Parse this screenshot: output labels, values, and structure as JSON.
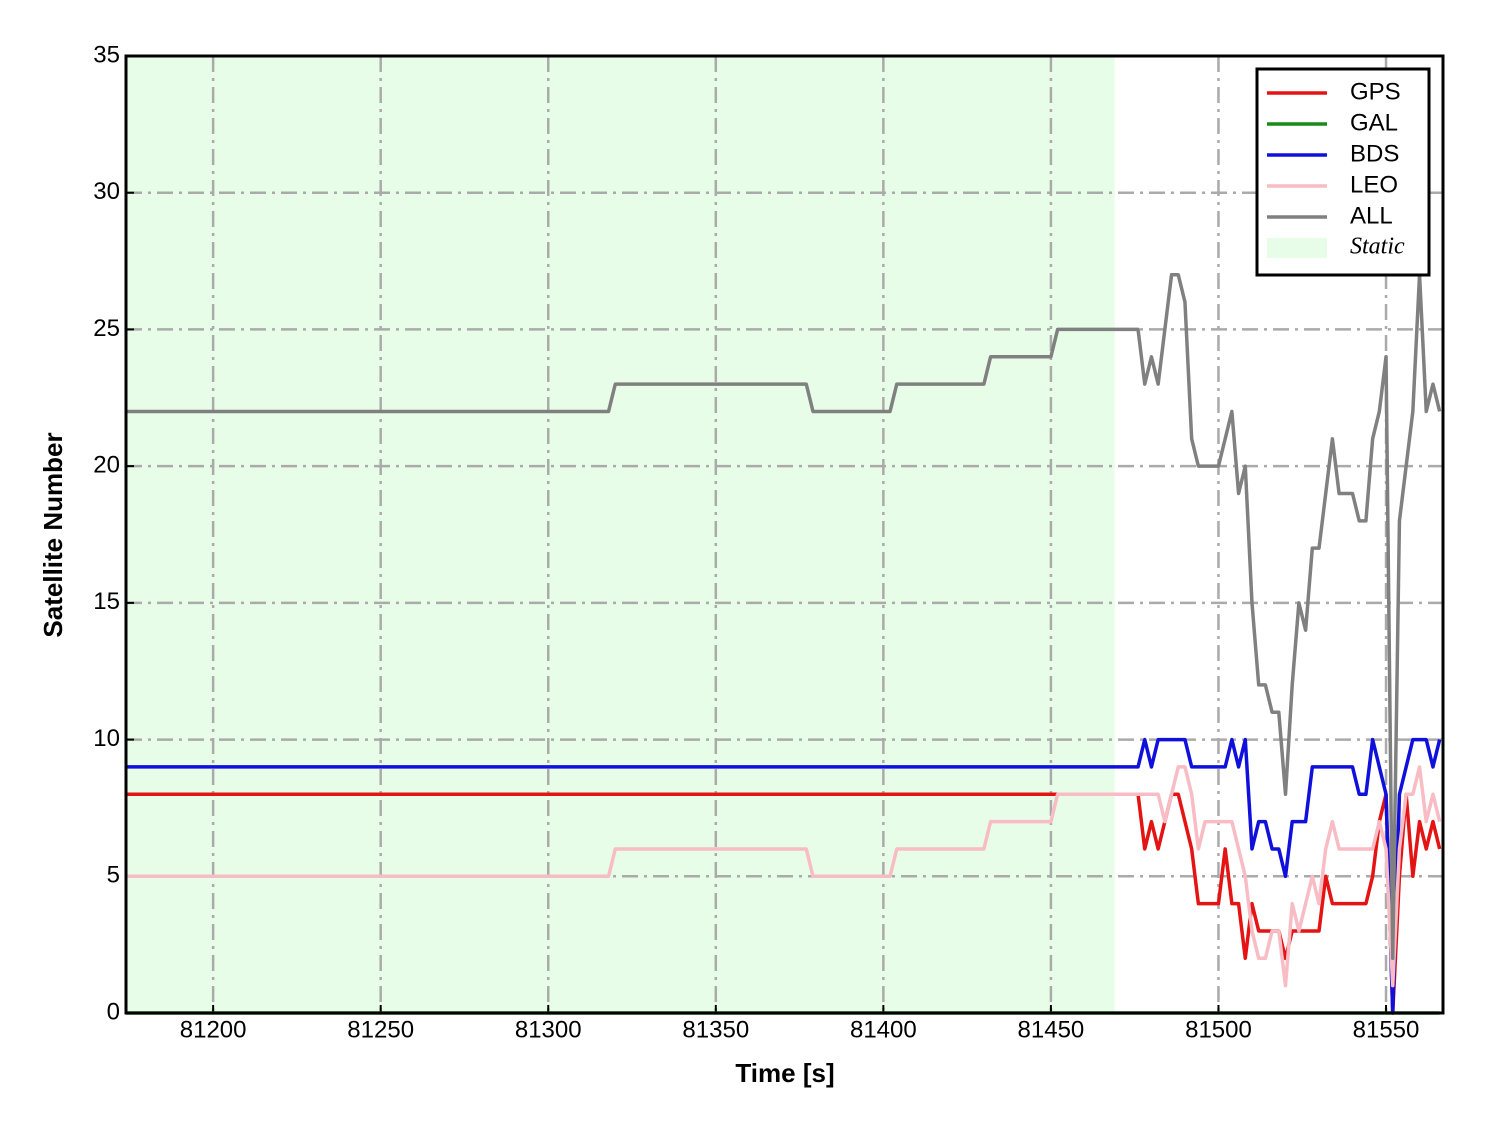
{
  "chart_data": {
    "type": "line",
    "xlabel": "Time [s]",
    "ylabel": "Satellite Number",
    "xlim": [
      81174,
      81567
    ],
    "ylim": [
      0,
      35
    ],
    "xticks": [
      81200,
      81250,
      81300,
      81350,
      81400,
      81450,
      81500,
      81550
    ],
    "yticks": [
      0,
      5,
      10,
      15,
      20,
      25,
      30,
      35
    ],
    "grid": true,
    "legend": "upper right",
    "shaded_label": "Static",
    "shaded_color": "#e8fde8",
    "static_span": [
      81174,
      81469
    ],
    "x": [
      81174,
      81318,
      81320,
      81377,
      81379,
      81402,
      81404,
      81430,
      81432,
      81450,
      81452,
      81476,
      81478,
      81480,
      81482,
      81484,
      81486,
      81488,
      81490,
      81492,
      81494,
      81496,
      81498,
      81500,
      81502,
      81504,
      81506,
      81508,
      81510,
      81512,
      81514,
      81516,
      81518,
      81520,
      81522,
      81524,
      81526,
      81528,
      81530,
      81532,
      81534,
      81536,
      81538,
      81540,
      81542,
      81544,
      81546,
      81548,
      81550,
      81552,
      81554,
      81556,
      81558,
      81560,
      81562,
      81564,
      81566
    ],
    "series": [
      {
        "name": "GPS",
        "color": "#e41414",
        "values": [
          8,
          8,
          8,
          8,
          8,
          8,
          8,
          8,
          8,
          8,
          8,
          8,
          6,
          7,
          6,
          7,
          8,
          8,
          7,
          6,
          4,
          4,
          4,
          4,
          6,
          4,
          4,
          2,
          4,
          3,
          3,
          3,
          3,
          2,
          3,
          3,
          3,
          3,
          3,
          5,
          4,
          4,
          4,
          4,
          4,
          4,
          5,
          7,
          8,
          0,
          5,
          8,
          5,
          7,
          6,
          7,
          6
        ]
      },
      {
        "name": "GAL",
        "color": "#1a8a1a",
        "values": [
          0,
          0,
          0,
          0,
          0,
          0,
          0,
          0,
          0,
          0,
          0,
          0,
          0,
          0,
          0,
          0,
          0,
          0,
          0,
          0,
          0,
          0,
          0,
          0,
          0,
          0,
          0,
          0,
          0,
          0,
          0,
          0,
          0,
          0,
          0,
          0,
          0,
          0,
          0,
          0,
          0,
          0,
          0,
          0,
          0,
          0,
          0,
          0,
          0,
          0,
          0,
          0,
          0,
          0,
          0,
          0,
          0
        ]
      },
      {
        "name": "BDS",
        "color": "#1010dd",
        "values": [
          9,
          9,
          9,
          9,
          9,
          9,
          9,
          9,
          9,
          9,
          9,
          9,
          10,
          9,
          10,
          10,
          10,
          10,
          10,
          9,
          9,
          9,
          9,
          9,
          9,
          10,
          9,
          10,
          6,
          7,
          7,
          6,
          6,
          5,
          7,
          7,
          7,
          9,
          9,
          9,
          9,
          9,
          9,
          9,
          8,
          8,
          10,
          9,
          8,
          0,
          8,
          9,
          10,
          10,
          10,
          9,
          10
        ]
      },
      {
        "name": "LEO",
        "color": "#f8bcc4",
        "values": [
          5,
          5,
          6,
          6,
          5,
          5,
          6,
          6,
          7,
          7,
          8,
          8,
          8,
          8,
          8,
          7,
          8,
          9,
          9,
          8,
          6,
          7,
          7,
          7,
          7,
          7,
          6,
          5,
          3,
          2,
          2,
          3,
          3,
          1,
          4,
          3,
          4,
          5,
          4,
          6,
          7,
          6,
          6,
          6,
          6,
          6,
          6,
          7,
          6,
          1,
          6,
          8,
          8,
          9,
          7,
          8,
          7
        ]
      },
      {
        "name": "ALL",
        "color": "#808080",
        "values": [
          22,
          22,
          23,
          23,
          22,
          22,
          23,
          23,
          24,
          24,
          25,
          25,
          23,
          24,
          23,
          25,
          27,
          27,
          26,
          21,
          20,
          20,
          20,
          20,
          21,
          22,
          19,
          20,
          15,
          12,
          12,
          11,
          11,
          8,
          12,
          15,
          14,
          17,
          17,
          19,
          21,
          19,
          19,
          19,
          18,
          18,
          21,
          22,
          24,
          2,
          18,
          20,
          22,
          27,
          22,
          23,
          22
        ]
      }
    ]
  }
}
